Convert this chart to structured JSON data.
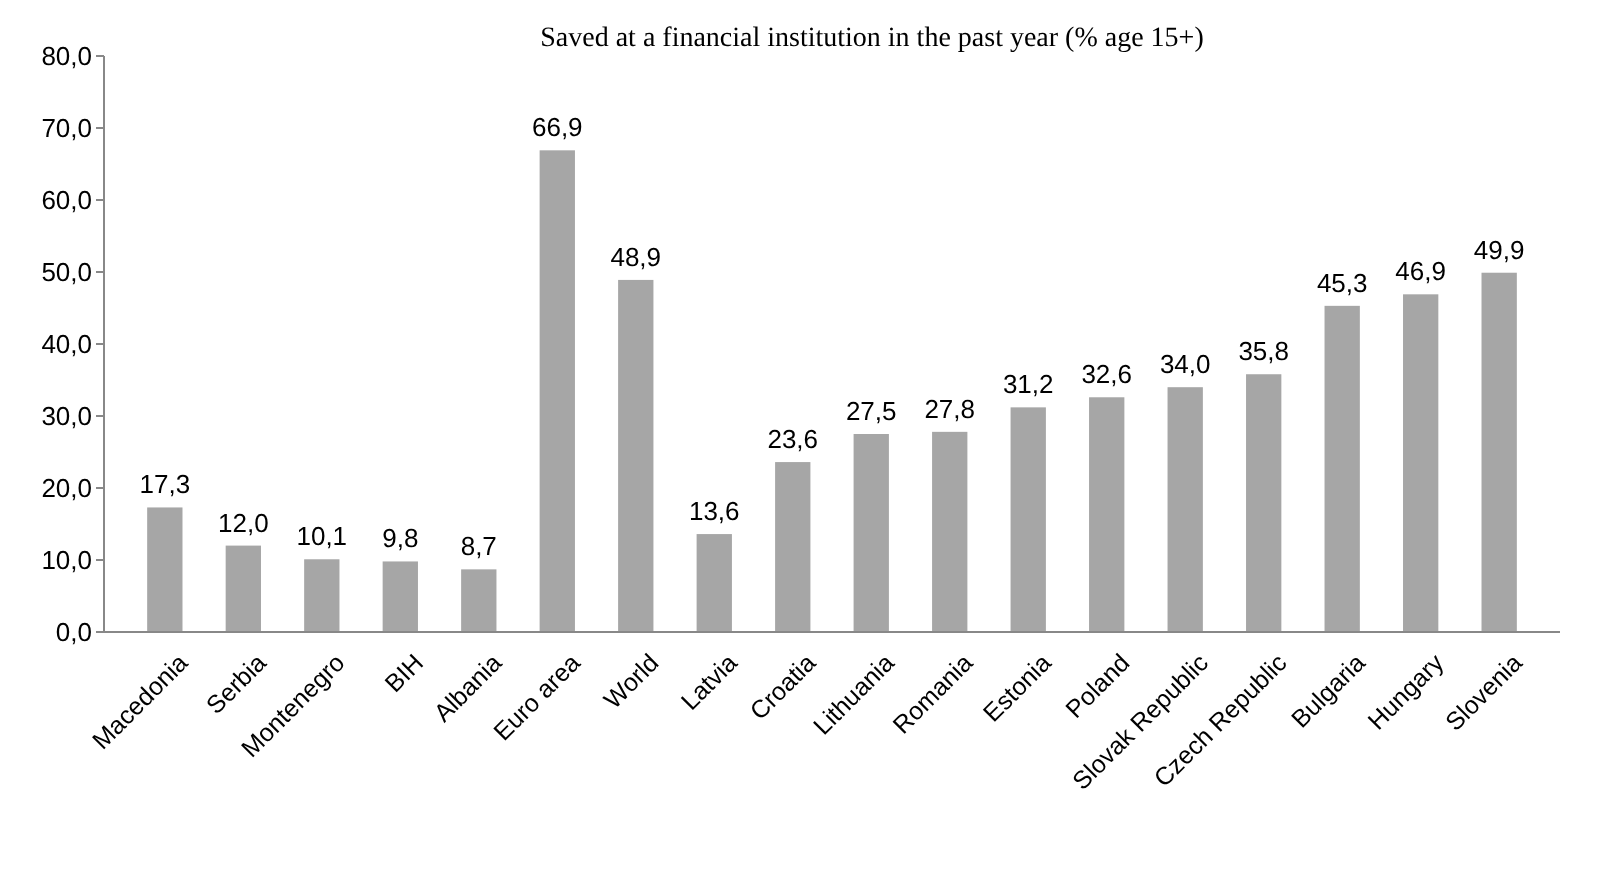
{
  "chart_data": {
    "type": "bar",
    "title": "Saved at a financial institution in the past year (% age 15+)",
    "categories": [
      "Macedonia",
      "Serbia",
      "Montenegro",
      "BIH",
      "Albania",
      "Euro area",
      "World",
      "Latvia",
      "Croatia",
      "Lithuania",
      "Romania",
      "Estonia",
      "Poland",
      "Slovak Republic",
      "Czech Republic",
      "Bulgaria",
      "Hungary",
      "Slovenia"
    ],
    "values": [
      17.3,
      12.0,
      10.1,
      9.8,
      8.7,
      66.9,
      48.9,
      13.6,
      23.6,
      27.5,
      27.8,
      31.2,
      32.6,
      34.0,
      35.8,
      45.3,
      46.9,
      49.9
    ],
    "value_labels": [
      "17,3",
      "12,0",
      "10,1",
      "9,8",
      "8,7",
      "66,9",
      "48,9",
      "13,6",
      "23,6",
      "27,5",
      "27,8",
      "31,2",
      "32,6",
      "34,0",
      "35,8",
      "45,3",
      "46,9",
      "49,9"
    ],
    "color": "#a6a6a6",
    "ylim": [
      0,
      80
    ],
    "yticks": [
      {
        "value": 0,
        "label": "0,0"
      },
      {
        "value": 10,
        "label": "10,0"
      },
      {
        "value": 20,
        "label": "20,0"
      },
      {
        "value": 30,
        "label": "30,0"
      },
      {
        "value": 40,
        "label": "40,0"
      },
      {
        "value": 50,
        "label": "50,0"
      },
      {
        "value": 60,
        "label": "60,0"
      },
      {
        "value": 70,
        "label": "70,0"
      },
      {
        "value": 80,
        "label": "80,0"
      }
    ],
    "grid": false
  }
}
